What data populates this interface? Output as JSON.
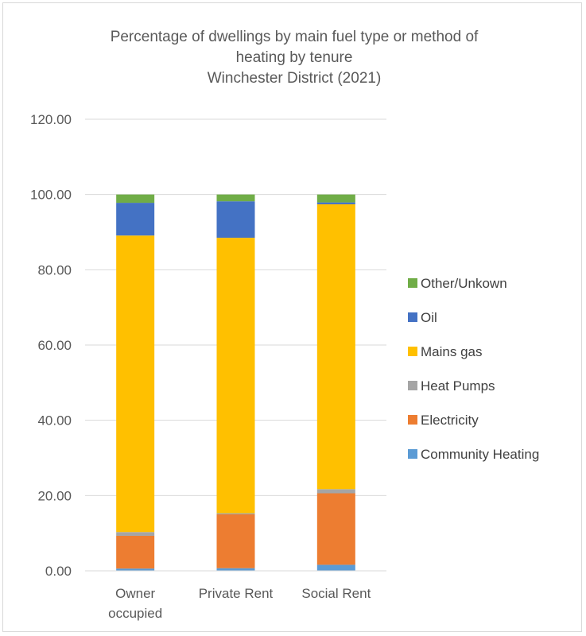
{
  "chart_data": {
    "type": "stacked-bar",
    "title_lines": [
      "Percentage of dwellings by main fuel type or method of",
      "heating by tenure",
      "Winchester District (2021)"
    ],
    "categories": [
      [
        "Owner",
        "occupied"
      ],
      [
        "Private Rent"
      ],
      [
        "Social Rent"
      ]
    ],
    "ylim": [
      0,
      120
    ],
    "yticks": [
      "0.00",
      "20.00",
      "40.00",
      "60.00",
      "80.00",
      "100.00",
      "120.00"
    ],
    "grid": true,
    "legend_position": "right",
    "series": [
      {
        "name": "Community Heating",
        "color": "#5b9bd5",
        "values": [
          0.6,
          0.7,
          1.6
        ]
      },
      {
        "name": "Electricity",
        "color": "#ed7d31",
        "values": [
          8.7,
          14.3,
          19.0
        ]
      },
      {
        "name": "Heat Pumps",
        "color": "#a5a5a5",
        "values": [
          1.0,
          0.3,
          1.1
        ]
      },
      {
        "name": "Mains gas",
        "color": "#ffc000",
        "values": [
          78.8,
          73.2,
          75.7
        ]
      },
      {
        "name": "Oil",
        "color": "#4472c4",
        "values": [
          8.7,
          9.7,
          0.5
        ]
      },
      {
        "name": "Other/Unkown",
        "color": "#70ad47",
        "values": [
          2.2,
          1.8,
          2.1
        ]
      }
    ]
  }
}
